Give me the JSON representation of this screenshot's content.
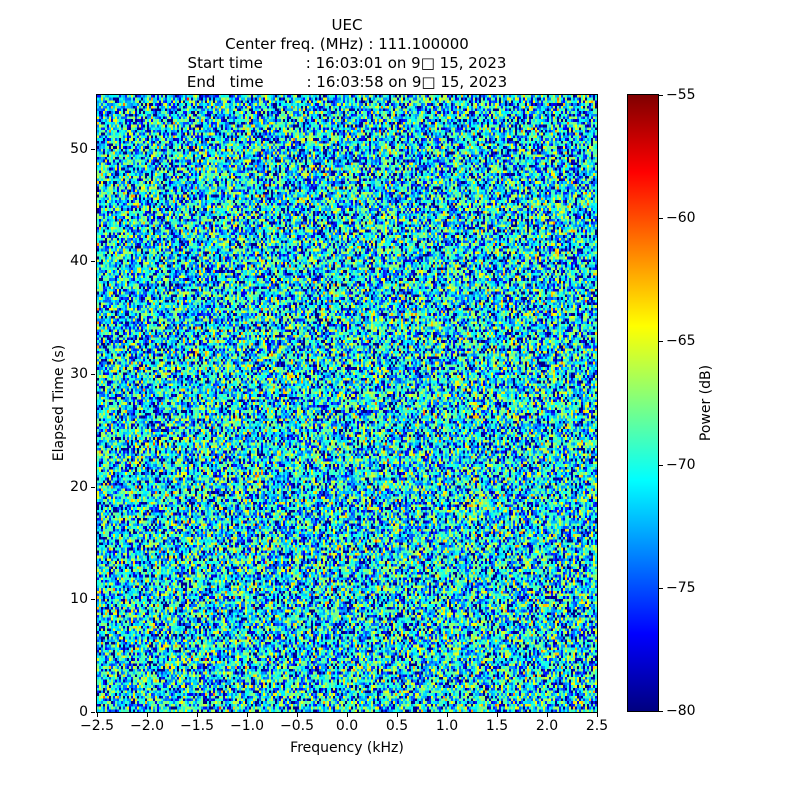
{
  "chart_data": {
    "type": "heatmap",
    "title_lines": [
      "UEC",
      "Center freq. (MHz) : 111.100000",
      "Start time         : 16:03:01 on 9□ 15, 2023",
      "End   time         : 16:03:58 on 9□ 15, 2023"
    ],
    "xlabel": "Frequency (kHz)",
    "ylabel": "Elapsed Time (s)",
    "colorbar_label": "Power (dB)",
    "xlim": [
      -2.5,
      2.5
    ],
    "ylim": [
      0,
      54.75
    ],
    "clim": [
      -80,
      -55
    ],
    "x_ticks": [
      {
        "v": -2.5,
        "label": "−2.5"
      },
      {
        "v": -2.0,
        "label": "−2.0"
      },
      {
        "v": -1.5,
        "label": "−1.5"
      },
      {
        "v": -1.0,
        "label": "−1.0"
      },
      {
        "v": -0.5,
        "label": "−0.5"
      },
      {
        "v": 0.0,
        "label": "0.0"
      },
      {
        "v": 0.5,
        "label": "0.5"
      },
      {
        "v": 1.0,
        "label": "1.0"
      },
      {
        "v": 1.5,
        "label": "1.5"
      },
      {
        "v": 2.0,
        "label": "2.0"
      },
      {
        "v": 2.5,
        "label": "2.5"
      }
    ],
    "y_ticks": [
      {
        "v": 0,
        "label": "0"
      },
      {
        "v": 10,
        "label": "10"
      },
      {
        "v": 20,
        "label": "20"
      },
      {
        "v": 30,
        "label": "30"
      },
      {
        "v": 40,
        "label": "40"
      },
      {
        "v": 50,
        "label": "50"
      }
    ],
    "colorbar_ticks": [
      {
        "v": -55,
        "label": "−55"
      },
      {
        "v": -60,
        "label": "−60"
      },
      {
        "v": -65,
        "label": "−65"
      },
      {
        "v": -70,
        "label": "−70"
      },
      {
        "v": -75,
        "label": "−75"
      },
      {
        "v": -80,
        "label": "−80"
      }
    ],
    "colormap": {
      "name": "jet",
      "stops": [
        {
          "pos": 0.0,
          "color": "#000080"
        },
        {
          "pos": 0.125,
          "color": "#0000ff"
        },
        {
          "pos": 0.375,
          "color": "#00ffff"
        },
        {
          "pos": 0.625,
          "color": "#ffff00"
        },
        {
          "pos": 0.875,
          "color": "#ff0000"
        },
        {
          "pos": 1.0,
          "color": "#800000"
        }
      ]
    },
    "noise_model": {
      "description": "white-noise spectrogram speckle; per-bin power ~ exponential, shown in dB",
      "seed": 1337,
      "cols": 250,
      "rows": 229,
      "base_db": -69.5
    },
    "text_color": "#000000",
    "background_color": "#ffffff"
  }
}
